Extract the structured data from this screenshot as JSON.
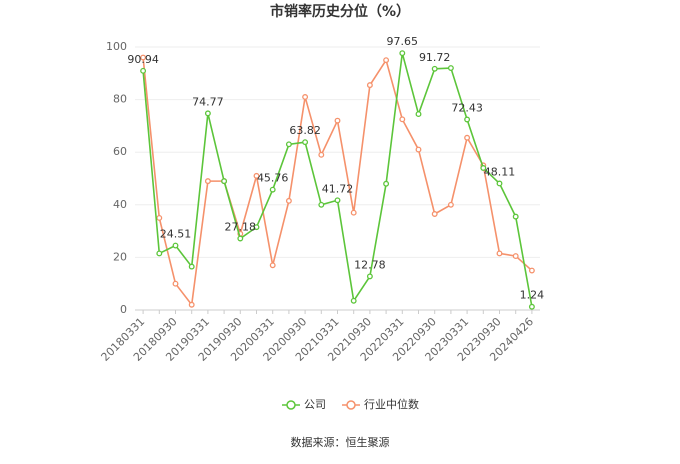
{
  "chart_data": {
    "type": "line",
    "title": "市销率历史分位（%）",
    "categories": [
      "20180331",
      null,
      "20180930",
      null,
      "20190331",
      null,
      "20190930",
      null,
      "20200331",
      null,
      "20200930",
      null,
      "20210331",
      null,
      "20210930",
      null,
      "20220331",
      null,
      "20220930",
      null,
      "20230331",
      null,
      "20230930",
      null,
      "20240426"
    ],
    "series": [
      {
        "name": "公司",
        "color": "#5cc53a",
        "values": [
          90.94,
          21.5,
          24.51,
          16.5,
          74.77,
          49,
          27.18,
          31.5,
          45.76,
          63,
          63.82,
          40,
          41.72,
          3.5,
          12.78,
          48,
          97.65,
          74.5,
          91.72,
          92,
          72.43,
          54,
          48.11,
          35.5,
          1.24
        ],
        "value_labels": [
          "90.94",
          null,
          "24.51",
          null,
          "74.77",
          null,
          "27.18",
          null,
          "45.76",
          null,
          "63.82",
          null,
          "41.72",
          null,
          "12.78",
          null,
          "97.65",
          null,
          "91.72",
          null,
          "72.43",
          null,
          "48.11",
          null,
          "1.24"
        ]
      },
      {
        "name": "行业中位数",
        "color": "#f5916b",
        "values": [
          96,
          35,
          10,
          2,
          49,
          49,
          29,
          51,
          17,
          41.5,
          81,
          59,
          72,
          37,
          85.5,
          95,
          72.5,
          61,
          36.5,
          40,
          65.5,
          55,
          21.5,
          20.5,
          15
        ]
      }
    ],
    "ylim": [
      0,
      100
    ],
    "yticks": [
      0,
      20,
      40,
      60,
      80,
      100
    ],
    "grid": true,
    "source": "数据来源：恒生聚源"
  }
}
